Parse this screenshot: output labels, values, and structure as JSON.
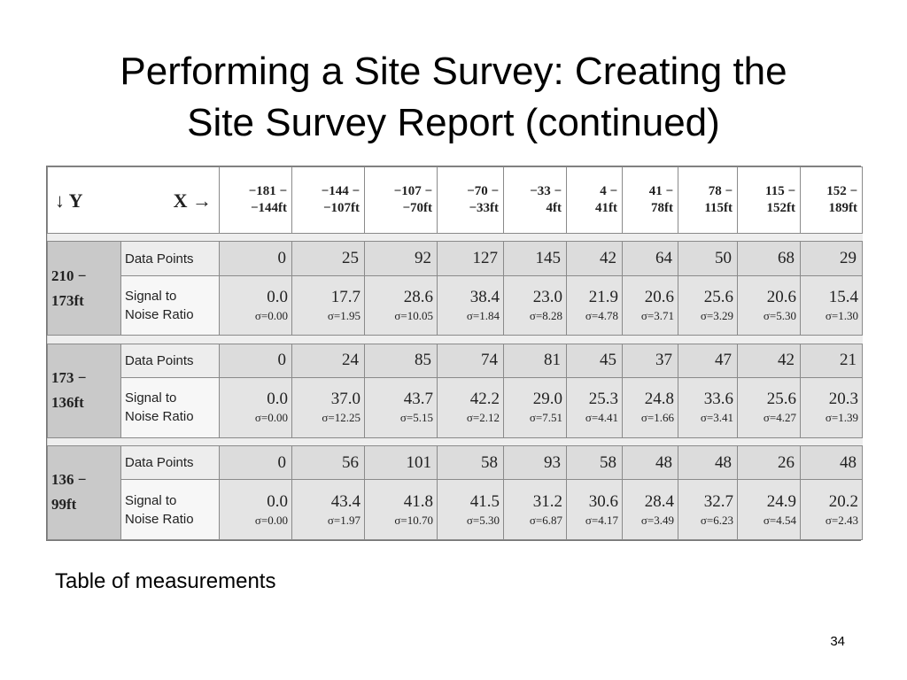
{
  "title": {
    "line1": "Performing a Site Survey: Creating the",
    "line2": "Site Survey Report (continued)"
  },
  "table": {
    "corner_y": "↓ Y",
    "corner_x": "X →",
    "x_ranges": [
      {
        "top": "−181 −",
        "bottom": "−144ft"
      },
      {
        "top": "−144 −",
        "bottom": "−107ft"
      },
      {
        "top": "−107 −",
        "bottom": "−70ft"
      },
      {
        "top": "−70 −",
        "bottom": "−33ft"
      },
      {
        "top": "−33 −",
        "bottom": "4ft"
      },
      {
        "top": "4 −",
        "bottom": "41ft"
      },
      {
        "top": "41 −",
        "bottom": "78ft"
      },
      {
        "top": "78 −",
        "bottom": "115ft"
      },
      {
        "top": "115 −",
        "bottom": "152ft"
      },
      {
        "top": "152 −",
        "bottom": "189ft"
      }
    ],
    "data_points_label": "Data Points",
    "snr_label_line1": "Signal to",
    "snr_label_line2": "Noise Ratio",
    "groups": [
      {
        "y_top": "210 −",
        "y_bottom": "173ft",
        "data_points": [
          "0",
          "25",
          "92",
          "127",
          "145",
          "42",
          "64",
          "50",
          "68",
          "29"
        ],
        "snr": [
          "0.0",
          "17.7",
          "28.6",
          "38.4",
          "23.0",
          "21.9",
          "20.6",
          "25.6",
          "20.6",
          "15.4"
        ],
        "sigma": [
          "σ=0.00",
          "σ=1.95",
          "σ=10.05",
          "σ=1.84",
          "σ=8.28",
          "σ=4.78",
          "σ=3.71",
          "σ=3.29",
          "σ=5.30",
          "σ=1.30"
        ]
      },
      {
        "y_top": "173 −",
        "y_bottom": "136ft",
        "data_points": [
          "0",
          "24",
          "85",
          "74",
          "81",
          "45",
          "37",
          "47",
          "42",
          "21"
        ],
        "snr": [
          "0.0",
          "37.0",
          "43.7",
          "42.2",
          "29.0",
          "25.3",
          "24.8",
          "33.6",
          "25.6",
          "20.3"
        ],
        "sigma": [
          "σ=0.00",
          "σ=12.25",
          "σ=5.15",
          "σ=2.12",
          "σ=7.51",
          "σ=4.41",
          "σ=1.66",
          "σ=3.41",
          "σ=4.27",
          "σ=1.39"
        ]
      },
      {
        "y_top": "136 −",
        "y_bottom": "99ft",
        "data_points": [
          "0",
          "56",
          "101",
          "58",
          "93",
          "58",
          "48",
          "48",
          "26",
          "48"
        ],
        "snr": [
          "0.0",
          "43.4",
          "41.8",
          "41.5",
          "31.2",
          "30.6",
          "28.4",
          "32.7",
          "24.9",
          "20.2"
        ],
        "sigma": [
          "σ=0.00",
          "σ=1.97",
          "σ=10.70",
          "σ=5.30",
          "σ=6.87",
          "σ=4.17",
          "σ=3.49",
          "σ=6.23",
          "σ=4.54",
          "σ=2.43"
        ]
      }
    ]
  },
  "caption": "Table of measurements",
  "page_number": "34"
}
